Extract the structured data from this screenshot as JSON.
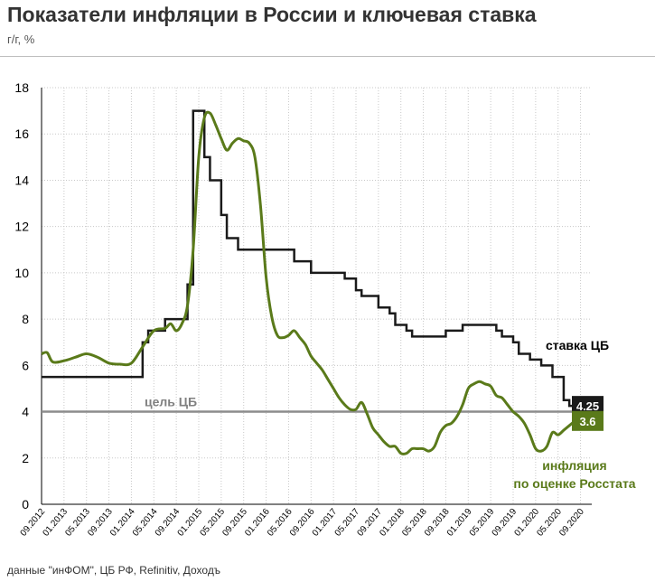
{
  "header": {
    "title": "Показатели инфляции в России и ключевая ставка",
    "subtitle": "г/г, %"
  },
  "footer": {
    "source": "данные \"инФОМ\", ЦБ РФ, Refinitiv, Доходъ"
  },
  "colors": {
    "rate": "#1a1a1a",
    "inflation": "#5a7a1a",
    "target": "#8c8c8c",
    "grid": "#c8c8c8"
  },
  "chart_data": {
    "type": "line",
    "title": "Показатели инфляции в России и ключевая ставка",
    "subtitle": "г/г, %",
    "ylim": [
      0,
      18
    ],
    "yticks": [
      0,
      2,
      4,
      6,
      8,
      10,
      12,
      14,
      16,
      18
    ],
    "xlim": [
      "2012-09",
      "2020-11"
    ],
    "xticks": [
      "09.2012",
      "01.2013",
      "05.2013",
      "09.2013",
      "01.2014",
      "05.2014",
      "09.2014",
      "01.2015",
      "05.2015",
      "09.2015",
      "01.2016",
      "05.2016",
      "09.2016",
      "01.2017",
      "05.2017",
      "09.2017",
      "01.2018",
      "05.2018",
      "09.2018",
      "01.2019",
      "05.2019",
      "09.2019",
      "01.2020",
      "05.2020",
      "09.2020"
    ],
    "grid": true,
    "target": {
      "label": "цель ЦБ",
      "value": 4
    },
    "series": [
      {
        "name": "ставка ЦБ",
        "color": "#1a1a1a",
        "end_label": "4.25",
        "step": true,
        "points": [
          [
            "2012-09",
            5.5
          ],
          [
            "2014-03",
            7.0
          ],
          [
            "2014-04",
            7.5
          ],
          [
            "2014-07",
            8.0
          ],
          [
            "2014-11",
            9.5
          ],
          [
            "2014-12",
            17.0
          ],
          [
            "2015-02",
            15.0
          ],
          [
            "2015-03",
            14.0
          ],
          [
            "2015-05",
            12.5
          ],
          [
            "2015-06",
            11.5
          ],
          [
            "2015-08",
            11.0
          ],
          [
            "2016-06",
            10.5
          ],
          [
            "2016-09",
            10.0
          ],
          [
            "2017-03",
            9.75
          ],
          [
            "2017-05",
            9.25
          ],
          [
            "2017-06",
            9.0
          ],
          [
            "2017-09",
            8.5
          ],
          [
            "2017-11",
            8.25
          ],
          [
            "2017-12",
            7.75
          ],
          [
            "2018-02",
            7.5
          ],
          [
            "2018-03",
            7.25
          ],
          [
            "2018-09",
            7.5
          ],
          [
            "2018-12",
            7.75
          ],
          [
            "2019-06",
            7.5
          ],
          [
            "2019-07",
            7.25
          ],
          [
            "2019-09",
            7.0
          ],
          [
            "2019-10",
            6.5
          ],
          [
            "2019-12",
            6.25
          ],
          [
            "2020-02",
            6.0
          ],
          [
            "2020-04",
            5.5
          ],
          [
            "2020-06",
            4.5
          ],
          [
            "2020-07",
            4.25
          ],
          [
            "2020-09",
            4.25
          ]
        ]
      },
      {
        "name": "инфляция по оценке Росстата",
        "label_lines": [
          "инфляция",
          "по оценке Росстата"
        ],
        "color": "#5a7a1a",
        "end_label": "3.6",
        "step": false,
        "points": [
          [
            "2012-09",
            6.5
          ],
          [
            "2012-10",
            6.55
          ],
          [
            "2012-11",
            6.15
          ],
          [
            "2013-01",
            6.2
          ],
          [
            "2013-03",
            6.35
          ],
          [
            "2013-05",
            6.5
          ],
          [
            "2013-07",
            6.35
          ],
          [
            "2013-09",
            6.1
          ],
          [
            "2013-11",
            6.05
          ],
          [
            "2014-01",
            6.1
          ],
          [
            "2014-03",
            6.8
          ],
          [
            "2014-05",
            7.5
          ],
          [
            "2014-07",
            7.6
          ],
          [
            "2014-08",
            7.8
          ],
          [
            "2014-09",
            7.5
          ],
          [
            "2014-10",
            7.8
          ],
          [
            "2014-11",
            8.6
          ],
          [
            "2014-12",
            11.0
          ],
          [
            "2015-01",
            15.0
          ],
          [
            "2015-02",
            16.7
          ],
          [
            "2015-03",
            16.9
          ],
          [
            "2015-04",
            16.4
          ],
          [
            "2015-05",
            15.8
          ],
          [
            "2015-06",
            15.3
          ],
          [
            "2015-07",
            15.6
          ],
          [
            "2015-08",
            15.8
          ],
          [
            "2015-09",
            15.7
          ],
          [
            "2015-10",
            15.6
          ],
          [
            "2015-11",
            15.0
          ],
          [
            "2015-12",
            12.9
          ],
          [
            "2016-01",
            9.8
          ],
          [
            "2016-02",
            8.1
          ],
          [
            "2016-03",
            7.3
          ],
          [
            "2016-04",
            7.2
          ],
          [
            "2016-05",
            7.3
          ],
          [
            "2016-06",
            7.5
          ],
          [
            "2016-07",
            7.2
          ],
          [
            "2016-08",
            6.9
          ],
          [
            "2016-09",
            6.4
          ],
          [
            "2016-10",
            6.1
          ],
          [
            "2016-11",
            5.8
          ],
          [
            "2016-12",
            5.4
          ],
          [
            "2017-01",
            5.0
          ],
          [
            "2017-02",
            4.6
          ],
          [
            "2017-03",
            4.3
          ],
          [
            "2017-04",
            4.1
          ],
          [
            "2017-05",
            4.1
          ],
          [
            "2017-06",
            4.4
          ],
          [
            "2017-07",
            3.9
          ],
          [
            "2017-08",
            3.3
          ],
          [
            "2017-09",
            3.0
          ],
          [
            "2017-10",
            2.7
          ],
          [
            "2017-11",
            2.5
          ],
          [
            "2017-12",
            2.5
          ],
          [
            "2018-01",
            2.2
          ],
          [
            "2018-02",
            2.2
          ],
          [
            "2018-03",
            2.4
          ],
          [
            "2018-04",
            2.4
          ],
          [
            "2018-05",
            2.4
          ],
          [
            "2018-06",
            2.3
          ],
          [
            "2018-07",
            2.5
          ],
          [
            "2018-08",
            3.1
          ],
          [
            "2018-09",
            3.4
          ],
          [
            "2018-10",
            3.5
          ],
          [
            "2018-11",
            3.8
          ],
          [
            "2018-12",
            4.3
          ],
          [
            "2019-01",
            5.0
          ],
          [
            "2019-02",
            5.2
          ],
          [
            "2019-03",
            5.3
          ],
          [
            "2019-04",
            5.2
          ],
          [
            "2019-05",
            5.1
          ],
          [
            "2019-06",
            4.7
          ],
          [
            "2019-07",
            4.6
          ],
          [
            "2019-08",
            4.3
          ],
          [
            "2019-09",
            4.0
          ],
          [
            "2019-10",
            3.8
          ],
          [
            "2019-11",
            3.5
          ],
          [
            "2019-12",
            3.0
          ],
          [
            "2020-01",
            2.4
          ],
          [
            "2020-02",
            2.3
          ],
          [
            "2020-03",
            2.5
          ],
          [
            "2020-04",
            3.1
          ],
          [
            "2020-05",
            3.0
          ],
          [
            "2020-06",
            3.2
          ],
          [
            "2020-07",
            3.4
          ],
          [
            "2020-08",
            3.6
          ]
        ]
      }
    ]
  }
}
